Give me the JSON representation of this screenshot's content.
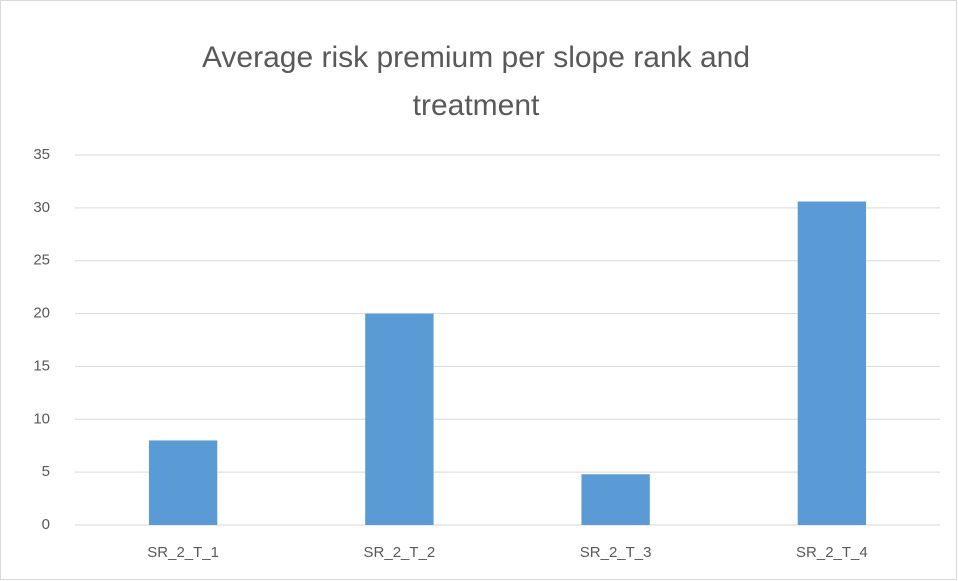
{
  "chart_data": {
    "type": "bar",
    "title": "Average risk premium per slope rank and treatment",
    "categories": [
      "SR_2_T_1",
      "SR_2_T_2",
      "SR_2_T_3",
      "SR_2_T_4"
    ],
    "values": [
      8,
      20,
      4.8,
      30.6
    ],
    "color": "#5b9bd5",
    "ylim": [
      0,
      35
    ],
    "yticks": [
      0,
      5,
      10,
      15,
      20,
      25,
      30,
      35
    ],
    "grid": true
  }
}
